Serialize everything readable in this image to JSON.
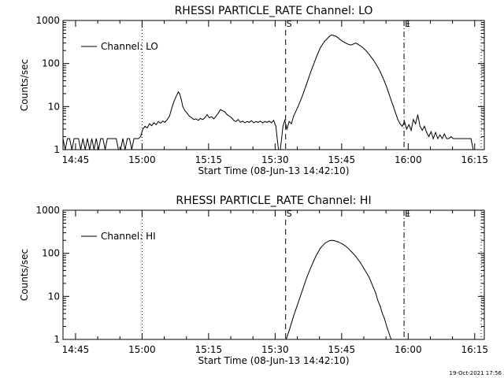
{
  "footer_timestamp": "19-Oct-2021 17:56",
  "chart_data": [
    {
      "type": "line",
      "title": "RHESSI PARTICLE_RATE Channel: LO",
      "xlabel": "Start Time (08-Jun-13 14:42:10)",
      "ylabel": "Counts/sec",
      "xaxis_unit": "minutes since 14:42:10",
      "xlim": [
        0,
        95
      ],
      "yscale": "log",
      "ylim": [
        1,
        1000
      ],
      "xticks": [
        {
          "t": 2.83,
          "label": "14:45"
        },
        {
          "t": 17.83,
          "label": "15:00"
        },
        {
          "t": 32.83,
          "label": "15:15"
        },
        {
          "t": 47.83,
          "label": "15:30"
        },
        {
          "t": 62.83,
          "label": "15:45"
        },
        {
          "t": 77.83,
          "label": "16:00"
        },
        {
          "t": 92.83,
          "label": "16:15"
        }
      ],
      "yticks": [
        {
          "v": 1,
          "label": "1"
        },
        {
          "v": 10,
          "label": "10"
        },
        {
          "v": 100,
          "label": "100"
        },
        {
          "v": 1000,
          "label": "1000"
        }
      ],
      "legend": {
        "label": "Channel: LO",
        "position": "top-left"
      },
      "markers": [
        {
          "t": 17.83,
          "style": "dotted",
          "label": ""
        },
        {
          "t": 50.2,
          "style": "dashed",
          "label": "S"
        },
        {
          "t": 76.9,
          "style": "dashdot",
          "label": "E"
        },
        {
          "t": 94.3,
          "style": "dotted",
          "label": ""
        }
      ],
      "series": [
        {
          "name": "Channel: LO",
          "points": [
            [
              0,
              1.8
            ],
            [
              0.5,
              1
            ],
            [
              1,
              1.8
            ],
            [
              1.5,
              1.8
            ],
            [
              2,
              1
            ],
            [
              2.5,
              1.8
            ],
            [
              3,
              1.8
            ],
            [
              3.5,
              1.8
            ],
            [
              4,
              1
            ],
            [
              4.5,
              1.8
            ],
            [
              5,
              1
            ],
            [
              5.5,
              1.8
            ],
            [
              6,
              1
            ],
            [
              6.5,
              1.8
            ],
            [
              7,
              1
            ],
            [
              7.5,
              1.8
            ],
            [
              8,
              1
            ],
            [
              8.5,
              1.8
            ],
            [
              9,
              1.8
            ],
            [
              9.5,
              1
            ],
            [
              10,
              1.8
            ],
            [
              10.5,
              1.8
            ],
            [
              11,
              1.8
            ],
            [
              11.5,
              1.8
            ],
            [
              12,
              1.8
            ],
            [
              12.5,
              1
            ],
            [
              13,
              1
            ],
            [
              13.5,
              1.8
            ],
            [
              14,
              1
            ],
            [
              14.5,
              1.8
            ],
            [
              15,
              1.8
            ],
            [
              15.5,
              1
            ],
            [
              16,
              1.8
            ],
            [
              16.5,
              1.8
            ],
            [
              17,
              1.8
            ],
            [
              17.5,
              2
            ],
            [
              18,
              3
            ],
            [
              18.5,
              3.5
            ],
            [
              19,
              3.2
            ],
            [
              19.5,
              4
            ],
            [
              20,
              3.6
            ],
            [
              20.5,
              4.2
            ],
            [
              21,
              3.8
            ],
            [
              21.5,
              4.5
            ],
            [
              22,
              4.1
            ],
            [
              22.5,
              4.6
            ],
            [
              23,
              4.3
            ],
            [
              23.5,
              5
            ],
            [
              24,
              6
            ],
            [
              24.5,
              9
            ],
            [
              25,
              13
            ],
            [
              25.5,
              17
            ],
            [
              26,
              22
            ],
            [
              26.3,
              20
            ],
            [
              26.7,
              14
            ],
            [
              27,
              10
            ],
            [
              27.5,
              8
            ],
            [
              28,
              7
            ],
            [
              28.5,
              6
            ],
            [
              29,
              5.5
            ],
            [
              29.5,
              5
            ],
            [
              30,
              5.2
            ],
            [
              30.5,
              4.8
            ],
            [
              31,
              5.3
            ],
            [
              31.5,
              5
            ],
            [
              32,
              5.5
            ],
            [
              32.5,
              6.5
            ],
            [
              33,
              5.5
            ],
            [
              33.5,
              5.8
            ],
            [
              34,
              5.2
            ],
            [
              34.5,
              6
            ],
            [
              35,
              7
            ],
            [
              35.5,
              8.5
            ],
            [
              36,
              8
            ],
            [
              36.5,
              7.5
            ],
            [
              37,
              6.5
            ],
            [
              37.5,
              6
            ],
            [
              38,
              5.5
            ],
            [
              38.5,
              4.8
            ],
            [
              39,
              4.5
            ],
            [
              39.5,
              5
            ],
            [
              40,
              4.3
            ],
            [
              40.5,
              4.6
            ],
            [
              41,
              4.2
            ],
            [
              41.5,
              4.5
            ],
            [
              42,
              4.3
            ],
            [
              42.5,
              4.7
            ],
            [
              43,
              4.2
            ],
            [
              43.5,
              4.5
            ],
            [
              44,
              4.3
            ],
            [
              44.5,
              4.6
            ],
            [
              45,
              4.2
            ],
            [
              45.5,
              4.5
            ],
            [
              46,
              4.3
            ],
            [
              46.5,
              4.6
            ],
            [
              47,
              4.2
            ],
            [
              47.5,
              4.8
            ],
            [
              48,
              3.5
            ],
            [
              48.3,
              1.8
            ],
            [
              48.6,
              1
            ],
            [
              49,
              1
            ],
            [
              49.3,
              1.8
            ],
            [
              49.6,
              3.5
            ],
            [
              50,
              4.8
            ],
            [
              50.5,
              3
            ],
            [
              51,
              4.5
            ],
            [
              51.5,
              4
            ],
            [
              52,
              6
            ],
            [
              53,
              10
            ],
            [
              54,
              18
            ],
            [
              55,
              35
            ],
            [
              56,
              70
            ],
            [
              57,
              130
            ],
            [
              58,
              230
            ],
            [
              59,
              330
            ],
            [
              60,
              420
            ],
            [
              60.5,
              460
            ],
            [
              61,
              450
            ],
            [
              61.5,
              430
            ],
            [
              62,
              400
            ],
            [
              62.5,
              360
            ],
            [
              63,
              330
            ],
            [
              63.5,
              310
            ],
            [
              64,
              290
            ],
            [
              64.5,
              275
            ],
            [
              65,
              270
            ],
            [
              65.5,
              285
            ],
            [
              66,
              300
            ],
            [
              66.5,
              280
            ],
            [
              67,
              260
            ],
            [
              67.5,
              240
            ],
            [
              68,
              215
            ],
            [
              68.5,
              190
            ],
            [
              69,
              165
            ],
            [
              69.5,
              140
            ],
            [
              70,
              120
            ],
            [
              70.5,
              100
            ],
            [
              71,
              82
            ],
            [
              71.5,
              65
            ],
            [
              72,
              50
            ],
            [
              72.5,
              38
            ],
            [
              73,
              28
            ],
            [
              73.5,
              20
            ],
            [
              74,
              14
            ],
            [
              74.5,
              10
            ],
            [
              75,
              7
            ],
            [
              75.5,
              5
            ],
            [
              76,
              4
            ],
            [
              76.5,
              3.5
            ],
            [
              77,
              4.5
            ],
            [
              77.5,
              3
            ],
            [
              78,
              3.8
            ],
            [
              78.5,
              2.8
            ],
            [
              79,
              5
            ],
            [
              79.5,
              4
            ],
            [
              80,
              6.5
            ],
            [
              80.5,
              3.5
            ],
            [
              81,
              2.8
            ],
            [
              81.5,
              3.5
            ],
            [
              82,
              2.5
            ],
            [
              82.5,
              2
            ],
            [
              83,
              2.6
            ],
            [
              83.5,
              1.8
            ],
            [
              84,
              2.5
            ],
            [
              84.5,
              1.8
            ],
            [
              85,
              2.2
            ],
            [
              85.5,
              1.8
            ],
            [
              86,
              2.3
            ],
            [
              86.5,
              1.8
            ],
            [
              87,
              1.8
            ],
            [
              87.5,
              2
            ],
            [
              88,
              1.8
            ],
            [
              88.5,
              1.8
            ],
            [
              89,
              1.8
            ],
            [
              89.5,
              1.8
            ],
            [
              90,
              1.8
            ],
            [
              90.5,
              1.8
            ],
            [
              91,
              1.8
            ],
            [
              91.5,
              1.8
            ],
            [
              92,
              1.8
            ],
            [
              92.5,
              1
            ],
            [
              93,
              1
            ]
          ]
        }
      ]
    },
    {
      "type": "line",
      "title": "RHESSI PARTICLE_RATE Channel: HI",
      "xlabel": "Start Time (08-Jun-13 14:42:10)",
      "ylabel": "Counts/sec",
      "xaxis_unit": "minutes since 14:42:10",
      "xlim": [
        0,
        95
      ],
      "yscale": "log",
      "ylim": [
        1,
        1000
      ],
      "xticks": [
        {
          "t": 2.83,
          "label": "14:45"
        },
        {
          "t": 17.83,
          "label": "15:00"
        },
        {
          "t": 32.83,
          "label": "15:15"
        },
        {
          "t": 47.83,
          "label": "15:30"
        },
        {
          "t": 62.83,
          "label": "15:45"
        },
        {
          "t": 77.83,
          "label": "16:00"
        },
        {
          "t": 92.83,
          "label": "16:15"
        }
      ],
      "yticks": [
        {
          "v": 1,
          "label": "1"
        },
        {
          "v": 10,
          "label": "10"
        },
        {
          "v": 100,
          "label": "100"
        },
        {
          "v": 1000,
          "label": "1000"
        }
      ],
      "legend": {
        "label": "Channel: HI",
        "position": "top-left"
      },
      "markers": [
        {
          "t": 17.83,
          "style": "dotted",
          "label": ""
        },
        {
          "t": 50.2,
          "style": "dashed",
          "label": "S"
        },
        {
          "t": 76.9,
          "style": "dashdot",
          "label": "E"
        },
        {
          "t": 94.3,
          "style": "dotted",
          "label": ""
        }
      ],
      "series": [
        {
          "name": "Channel: HI",
          "points": [
            [
              50.3,
              1
            ],
            [
              51,
              1.6
            ],
            [
              52,
              3.5
            ],
            [
              53,
              7
            ],
            [
              54,
              14
            ],
            [
              55,
              28
            ],
            [
              56,
              50
            ],
            [
              57,
              85
            ],
            [
              58,
              130
            ],
            [
              59,
              170
            ],
            [
              60,
              195
            ],
            [
              60.5,
              200
            ],
            [
              61,
              198
            ],
            [
              62,
              185
            ],
            [
              63,
              165
            ],
            [
              64,
              140
            ],
            [
              65,
              110
            ],
            [
              66,
              85
            ],
            [
              67,
              62
            ],
            [
              68,
              42
            ],
            [
              69,
              28
            ],
            [
              70,
              16
            ],
            [
              70.5,
              12
            ],
            [
              71,
              8
            ],
            [
              71.5,
              6
            ],
            [
              72,
              4
            ],
            [
              72.5,
              3
            ],
            [
              73,
              2
            ],
            [
              73.5,
              1.4
            ],
            [
              74,
              1
            ]
          ]
        }
      ]
    }
  ]
}
